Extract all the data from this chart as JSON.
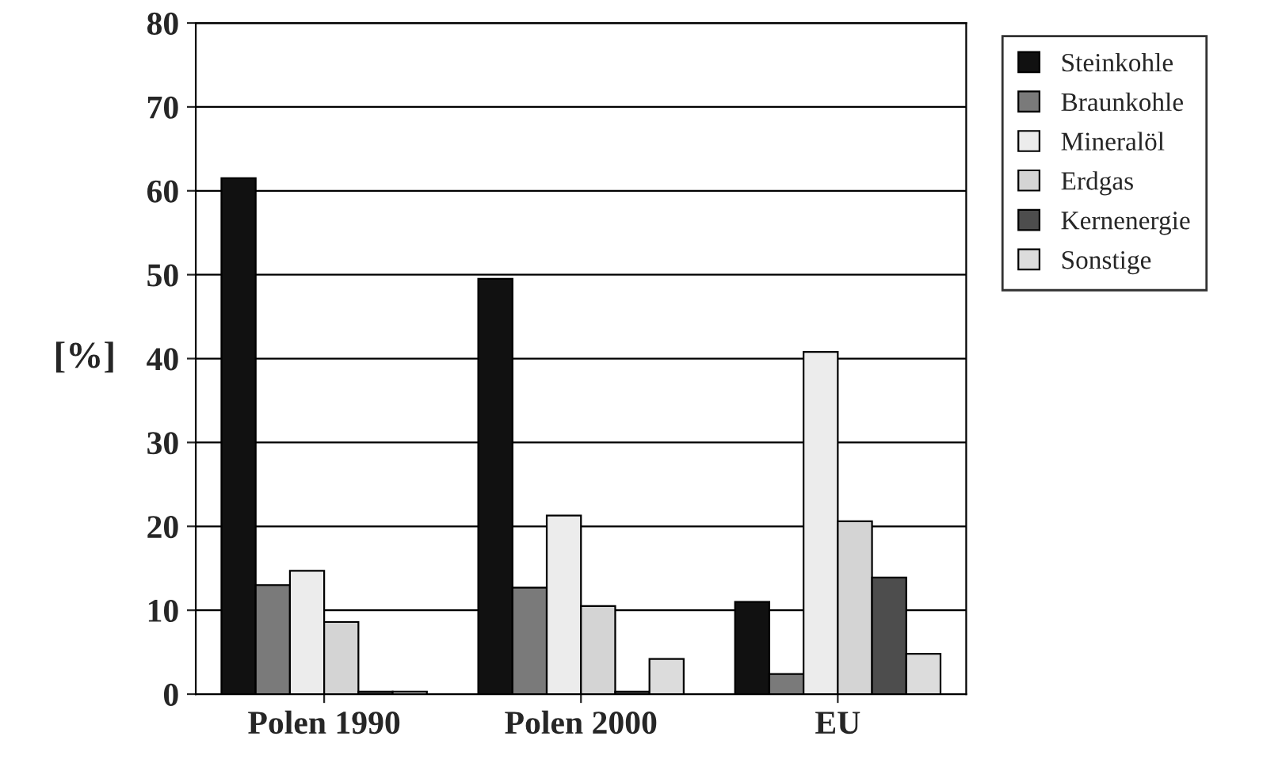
{
  "chart_data": {
    "type": "bar",
    "ylabel": "[%]",
    "categories": [
      "Polen 1990",
      "Polen 2000",
      "EU"
    ],
    "series": [
      {
        "name": "Steinkohle",
        "color": "#111111",
        "values": [
          61.5,
          49.5,
          11
        ]
      },
      {
        "name": "Braunkohle",
        "color": "#7a7a7a",
        "values": [
          13,
          12.7,
          2.4
        ]
      },
      {
        "name": "Mineralöl",
        "color": "#ececec",
        "values": [
          14.7,
          21.3,
          40.8
        ]
      },
      {
        "name": "Erdgas",
        "color": "#d4d4d4",
        "values": [
          8.6,
          10.5,
          20.6
        ]
      },
      {
        "name": "Kernenergie",
        "color": "#4d4d4d",
        "values": [
          0.3,
          0.3,
          13.9
        ]
      },
      {
        "name": "Sonstige",
        "color": "#dcdcdc",
        "values": [
          0.3,
          4.2,
          4.8
        ]
      }
    ],
    "ylim": [
      0,
      80
    ],
    "yticks": [
      0,
      10,
      20,
      30,
      40,
      50,
      60,
      70,
      80
    ],
    "grid": "y",
    "legend": "top right"
  }
}
